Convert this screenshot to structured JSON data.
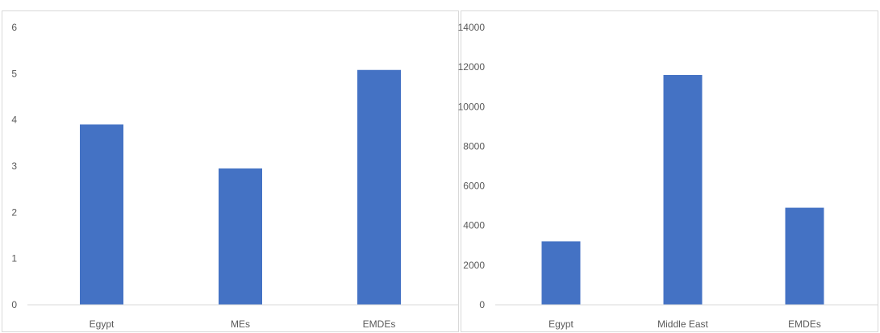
{
  "chart_data": [
    {
      "type": "bar",
      "categories": [
        "Egypt",
        "MEs",
        "EMDEs"
      ],
      "values": [
        3.9,
        2.95,
        5.08
      ],
      "ylim": [
        0,
        6
      ],
      "yticks": [
        0,
        1,
        2,
        3,
        4,
        5,
        6
      ],
      "grid": false,
      "bar_color": "#4472c4",
      "axis_color": "#d9d9d9",
      "text_color": "#595959"
    },
    {
      "type": "bar",
      "categories": [
        "Egypt",
        "Middle East",
        "EMDEs"
      ],
      "values": [
        3200,
        11600,
        4900
      ],
      "ylim": [
        0,
        14000
      ],
      "yticks": [
        0,
        2000,
        4000,
        6000,
        8000,
        10000,
        12000,
        14000
      ],
      "grid": false,
      "bar_color": "#4472c4",
      "axis_color": "#d9d9d9",
      "text_color": "#595959"
    }
  ]
}
